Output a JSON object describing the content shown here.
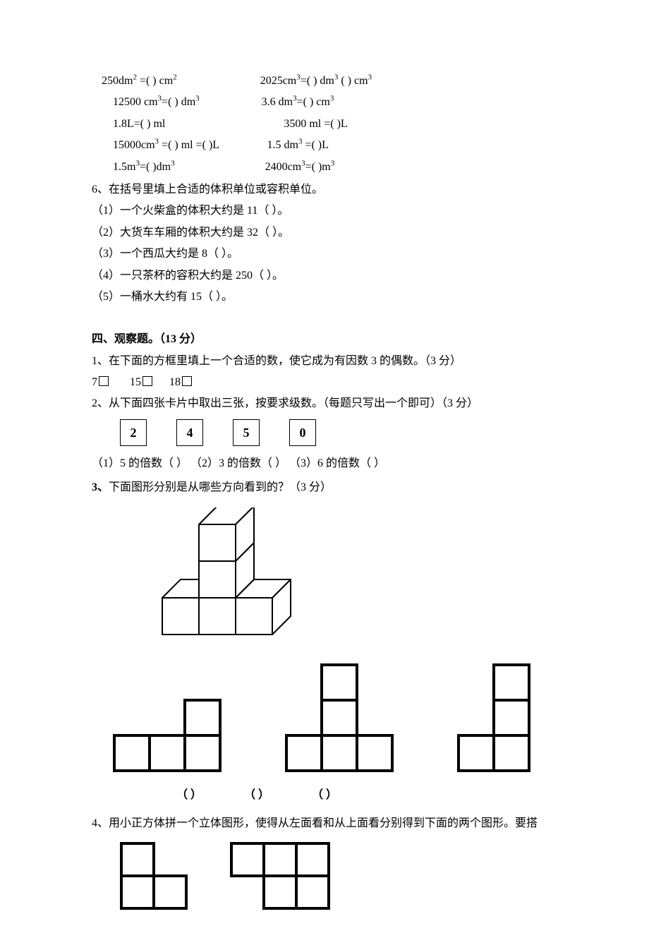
{
  "conversions": {
    "l1a": "250dm",
    "l1a_sup": "2",
    "l1a_mid": " =(       ) cm",
    "l1a_sup2": "2",
    "l1b": "2025cm",
    "l1b_sup": "3",
    "l1b_mid": "=(     ) dm",
    "l1b_sup2": "3",
    "l1b_mid2": " (       ) cm",
    "l1b_sup3": "3",
    "l2a": "12500 cm",
    "l2a_sup": "3",
    "l2a_mid": "=(      ) dm",
    "l2a_sup2": "3",
    "l2b": "3.6 dm",
    "l2b_sup": "3",
    "l2b_mid": "=(      ) cm",
    "l2b_sup2": "3",
    "l3a": "1.8L=(    ) ml",
    "l3b": "3500 ml =(      )L",
    "l4a": "15000cm",
    "l4a_sup": "3",
    "l4a_mid": " =(     ) ml =(     )L",
    "l4b": "1.5 dm",
    "l4b_sup": "3",
    "l4b_mid": " =(      )L",
    "l5a": "1.5m",
    "l5a_sup": "3",
    "l5a_mid": "=(      )dm",
    "l5a_sup2": "3",
    "l5b": "2400cm",
    "l5b_sup": "3",
    "l5b_mid": "=(      )m",
    "l5b_sup2": "3"
  },
  "q6": {
    "title": "6、在括号里填上合适的体积单位或容积单位。",
    "items": [
      "（1）一个火柴盒的体积大约是 11（     ）。",
      "（2）大货车车厢的体积大约是 32（     ）。",
      "（3）一个西瓜大约是 8（     ）。",
      "（4）一只茶杯的容积大约是 250（     ）。",
      "（5）一桶水大约有 15（     ）。"
    ]
  },
  "section4": {
    "title": "四、观察题。（13 分）",
    "q1": "1、在下面的方框里填上一个合适的数，使它成为有因数 3 的偶数。（3 分）",
    "q1_opts": [
      "7",
      "15",
      "18"
    ],
    "q2": "2、从下面四张卡片中取出三张，按要求级数。（每题只写出一个即可）（3 分）",
    "cards": [
      "2",
      "4",
      "5",
      "0"
    ],
    "q2_sub": "（1）5 的倍数（          ） （2）3 的倍数（          ） （3）6 的倍数（          ）",
    "q3": "3、下面图形分别是从哪些方向看到的？（3 分）",
    "paren": [
      "（       ）",
      "（       ）",
      "（       ）"
    ],
    "q4": "4、用小正方体拼一个立体图形，使得从左面看和从上面看分别得到下面的两个图形。要搭"
  },
  "cubeStyle": {
    "stroke": "#000000",
    "strokeWidth": 2,
    "fill": "#ffffff",
    "size3d": 52,
    "depth": 26,
    "sizeFlat": 50
  },
  "views": [
    {
      "cells": [
        [
          0,
          1
        ],
        [
          1,
          1
        ],
        [
          2,
          1
        ],
        [
          2,
          0
        ]
      ],
      "cols": 3,
      "rows": 2
    },
    {
      "cells": [
        [
          1,
          0
        ],
        [
          1,
          1
        ],
        [
          0,
          2
        ],
        [
          1,
          2
        ],
        [
          2,
          2
        ]
      ],
      "cols": 3,
      "rows": 3
    },
    {
      "cells": [
        [
          1,
          0
        ],
        [
          1,
          1
        ],
        [
          0,
          2
        ],
        [
          1,
          2
        ]
      ],
      "cols": 2,
      "rows": 3
    }
  ],
  "q4shapes": [
    {
      "cells": [
        [
          0,
          0
        ],
        [
          0,
          1
        ],
        [
          1,
          1
        ]
      ],
      "cols": 2,
      "rows": 2
    },
    {
      "cells": [
        [
          0,
          0
        ],
        [
          1,
          0
        ],
        [
          2,
          0
        ],
        [
          1,
          1
        ],
        [
          2,
          1
        ]
      ],
      "cols": 3,
      "rows": 2
    }
  ]
}
